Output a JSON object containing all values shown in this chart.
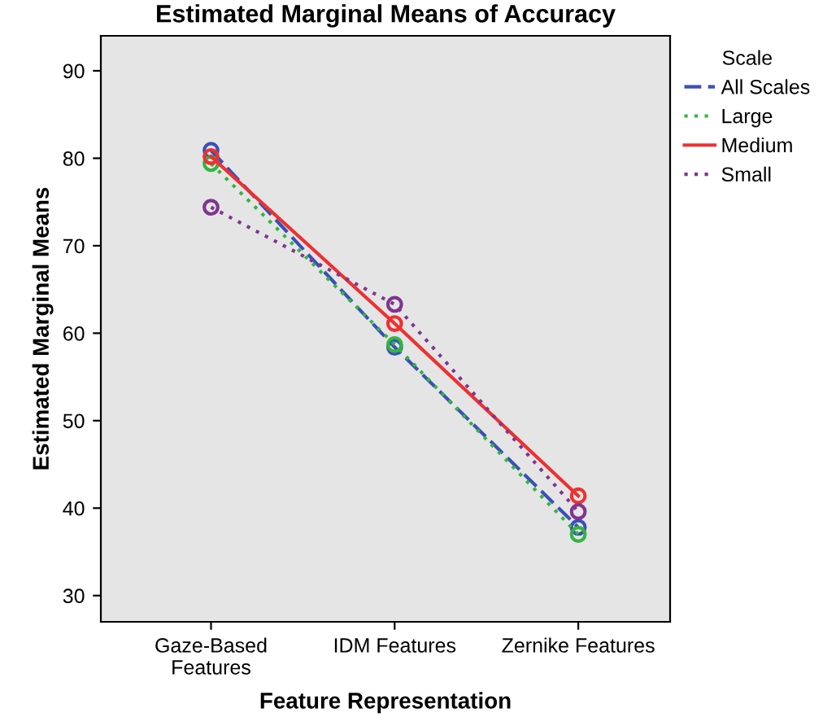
{
  "chart_data": {
    "type": "line",
    "title": "Estimated Marginal Means of Accuracy",
    "xlabel": "Feature Representation",
    "ylabel": "Estimated Marginal Means",
    "legend_title": "Scale",
    "categories": [
      "Gaze-Based\nFeatures",
      "IDM Features",
      "Zernike Features"
    ],
    "series": [
      {
        "name": "All Scales",
        "color": "#3a4fb8",
        "line_style": "dashed",
        "values": [
          80.9,
          58.4,
          37.8
        ]
      },
      {
        "name": "Large",
        "color": "#33b440",
        "line_style": "dotted",
        "values": [
          79.4,
          58.7,
          37.0
        ]
      },
      {
        "name": "Medium",
        "color": "#ee3030",
        "line_style": "solid",
        "values": [
          80.2,
          61.1,
          41.4
        ]
      },
      {
        "name": "Small",
        "color": "#7f3590",
        "line_style": "dotted",
        "values": [
          74.4,
          63.3,
          39.6
        ]
      }
    ],
    "ylim": [
      27,
      94
    ],
    "yticks": [
      30,
      40,
      50,
      60,
      70,
      80,
      90
    ],
    "marker": "circle",
    "grid": false,
    "legend": "right"
  }
}
